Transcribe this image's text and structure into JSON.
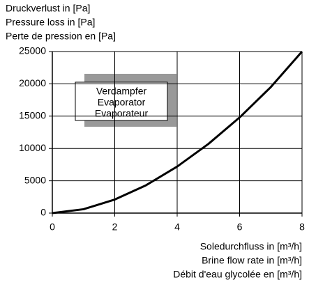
{
  "chart_data": {
    "type": "line",
    "ylabel": [
      "Druckverlust in [Pa]",
      "Pressure loss in [Pa]",
      "Perte de pression en [Pa]"
    ],
    "xlabel": [
      "Soledurchfluss in [m³/h]",
      "Brine flow rate in [m³/h]",
      "Débit d'eau glycolée en [m³/h]"
    ],
    "annotation": [
      "Verdampfer",
      "Evaporator",
      "Evaporateur"
    ],
    "x": [
      0,
      1,
      2,
      3,
      4,
      5,
      6,
      7,
      8
    ],
    "series": [
      {
        "color": "#000000",
        "values": [
          0,
          600,
          2100,
          4300,
          7200,
          10700,
          14800,
          19500,
          25000
        ]
      }
    ],
    "xlim": [
      0,
      8
    ],
    "xticks": [
      0,
      2,
      4,
      6,
      8
    ],
    "ylim": [
      0,
      25000
    ],
    "yticks": [
      0,
      5000,
      10000,
      15000,
      20000,
      25000
    ],
    "grid": true
  }
}
